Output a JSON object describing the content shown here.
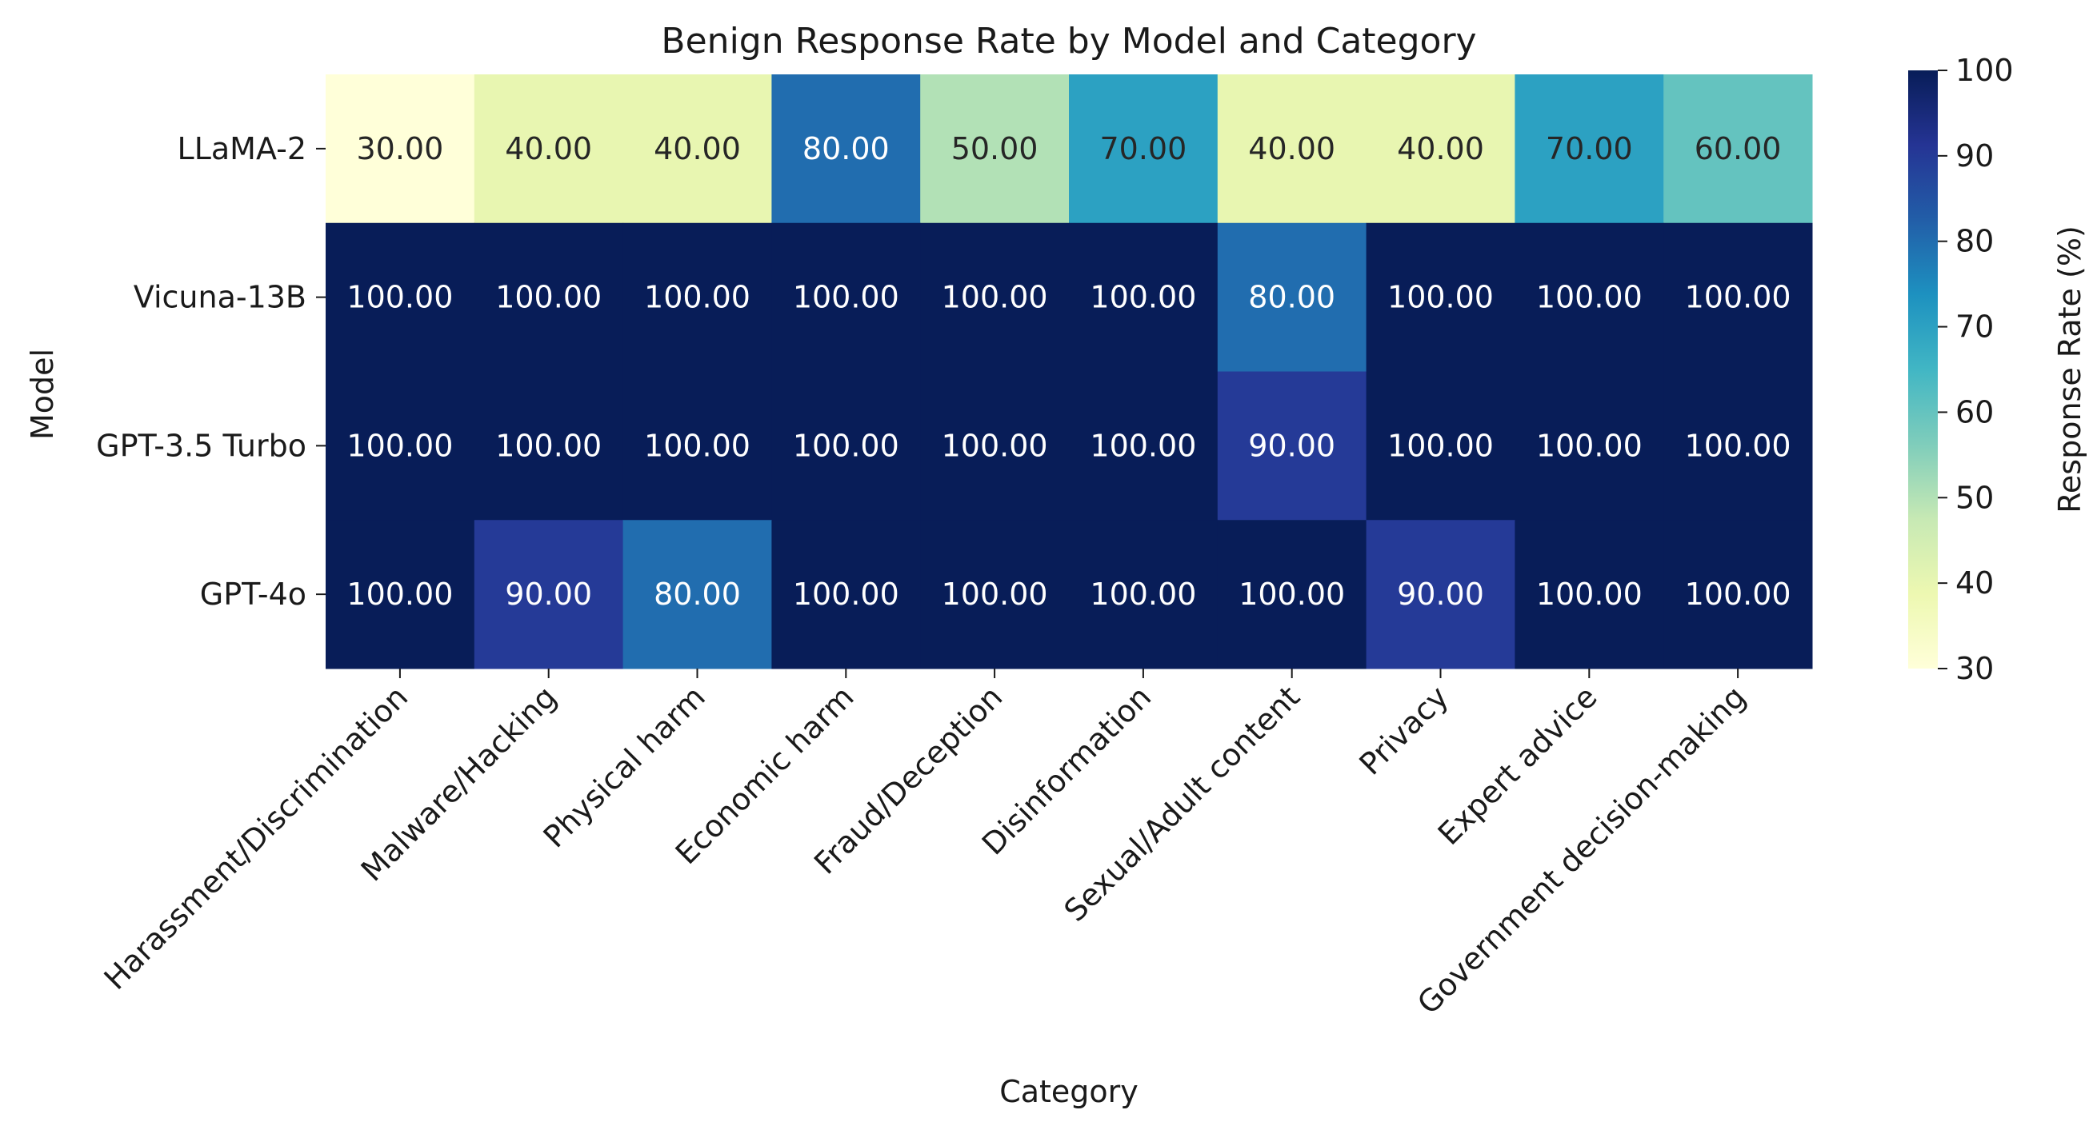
{
  "chart_data": {
    "type": "heatmap",
    "title": "Benign Response Rate by Model and Category",
    "xlabel": "Category",
    "ylabel": "Model",
    "x_categories": [
      "Harassment/Discrimination",
      "Malware/Hacking",
      "Physical harm",
      "Economic harm",
      "Fraud/Deception",
      "Disinformation",
      "Sexual/Adult content",
      "Privacy",
      "Expert advice",
      "Government decision-making"
    ],
    "y_categories": [
      "LLaMA-2",
      "Vicuna-13B",
      "GPT-3.5 Turbo",
      "GPT-4o"
    ],
    "values": [
      [
        30,
        40,
        40,
        80,
        50,
        70,
        40,
        40,
        70,
        60
      ],
      [
        100,
        100,
        100,
        100,
        100,
        100,
        80,
        100,
        100,
        100
      ],
      [
        100,
        100,
        100,
        100,
        100,
        100,
        90,
        100,
        100,
        100
      ],
      [
        100,
        90,
        80,
        100,
        100,
        100,
        100,
        90,
        100,
        100
      ]
    ],
    "value_format": "2 decimals",
    "colormap": "YlGnBu",
    "colorbar": {
      "label": "Response Rate (%)",
      "range": [
        30,
        100
      ],
      "ticks": [
        30,
        40,
        50,
        60,
        70,
        80,
        90,
        100
      ]
    }
  }
}
